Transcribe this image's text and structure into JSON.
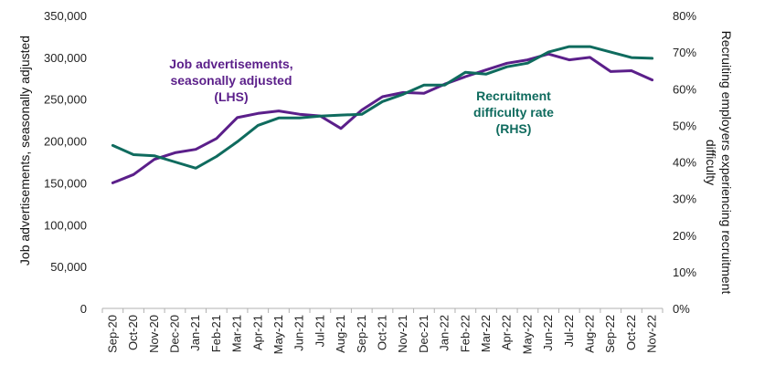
{
  "chart_data": {
    "type": "line",
    "categories": [
      "Sep-20",
      "Oct-20",
      "Nov-20",
      "Dec-20",
      "Jan-21",
      "Feb-21",
      "Mar-21",
      "Apr-21",
      "May-21",
      "Jun-21",
      "Jul-21",
      "Aug-21",
      "Sep-21",
      "Oct-21",
      "Nov-21",
      "Dec-21",
      "Jan-22",
      "Feb-22",
      "Mar-22",
      "Apr-22",
      "May-22",
      "Jun-22",
      "Jul-22",
      "Aug-22",
      "Sep-22",
      "Oct-22",
      "Nov-22"
    ],
    "series": [
      {
        "axis": "left",
        "color": "#5b1f8a",
        "values": [
          150000,
          160000,
          178000,
          186000,
          190000,
          203000,
          228000,
          233000,
          236000,
          232000,
          230000,
          215000,
          237000,
          253000,
          258000,
          257000,
          268000,
          277000,
          285000,
          293000,
          297000,
          304000,
          297000,
          300000,
          283000,
          284000,
          273000
        ]
      },
      {
        "axis": "right",
        "color": "#0f6b5e",
        "values": [
          44.5,
          42,
          41.7,
          40,
          38.3,
          41.5,
          45.5,
          50,
          52,
          52,
          52.5,
          52.8,
          53,
          56.5,
          58.5,
          61,
          61,
          64.5,
          64,
          66,
          67,
          70,
          71.5,
          71.5,
          70,
          68.5,
          68.3
        ]
      }
    ],
    "y_left": {
      "label": "Job advertisements, seasonally adjusted",
      "ylim": [
        0,
        350000
      ],
      "ticks": [
        "0",
        "50,000",
        "100,000",
        "150,000",
        "200,000",
        "250,000",
        "300,000",
        "350,000"
      ]
    },
    "y_right": {
      "label_lines": [
        "Recruiting employers experiencing recruitment",
        "difficulty"
      ],
      "ylim": [
        0,
        80
      ],
      "ticks": [
        "0%",
        "10%",
        "20%",
        "30%",
        "40%",
        "50%",
        "60%",
        "70%",
        "80%"
      ]
    },
    "annotations": [
      {
        "lines": [
          "Job advertisements,",
          "seasonally adjusted",
          "(LHS)"
        ],
        "color": "#5b1f8a"
      },
      {
        "lines": [
          "Recruitment",
          "difficulty rate",
          "(RHS)"
        ],
        "color": "#0f6b5e"
      }
    ],
    "grid": false,
    "legend": "none"
  }
}
